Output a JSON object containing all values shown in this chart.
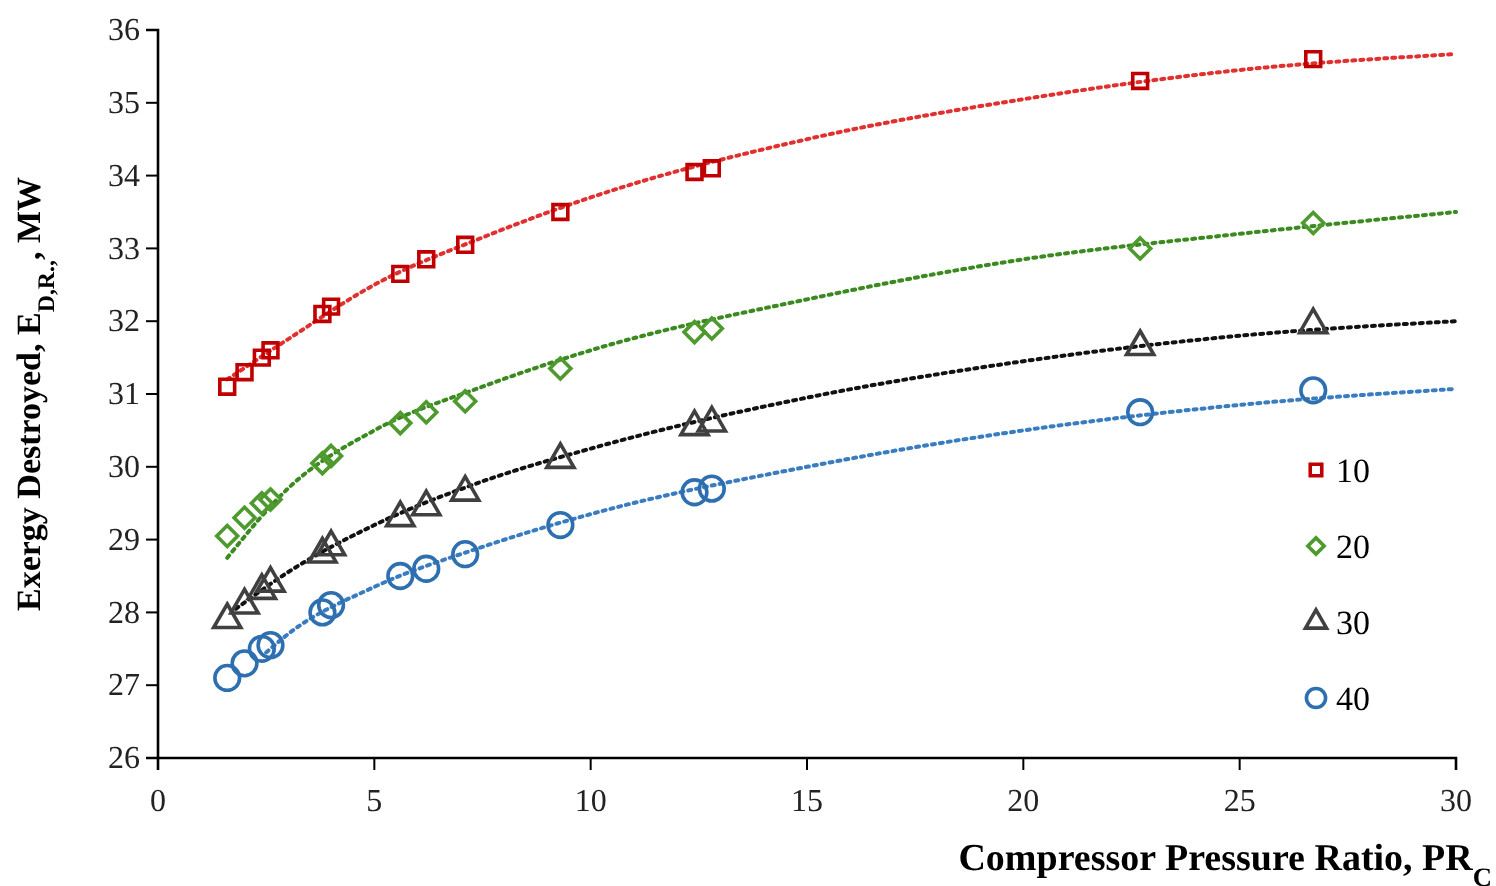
{
  "chart_data": {
    "type": "scatter",
    "xlabel": "Compressor Pressure Ratio, PR$_{C}$",
    "ylabel": "Exergy Destroyed, E$_{D,R.,}$, MW",
    "xlim": [
      0,
      30
    ],
    "xticks": [
      0,
      5,
      10,
      15,
      20,
      25,
      30
    ],
    "ylim": [
      26,
      36
    ],
    "yticks": [
      26,
      27,
      28,
      29,
      30,
      31,
      32,
      33,
      34,
      35,
      36
    ],
    "grid": false,
    "legend": "right",
    "x": [
      1.6,
      2.0,
      2.4,
      2.6,
      3.8,
      4.0,
      5.6,
      6.2,
      7.1,
      9.3,
      12.4,
      12.8,
      22.7,
      26.7
    ],
    "series": [
      {
        "name": "10",
        "color": "#c00000",
        "marker": "square",
        "values": [
          31.1,
          31.3,
          31.5,
          31.6,
          32.1,
          32.2,
          32.65,
          32.85,
          33.05,
          33.5,
          34.05,
          34.1,
          35.3,
          35.6
        ]
      },
      {
        "name": "20",
        "color": "#4e9a2e",
        "marker": "diamond",
        "values": [
          29.05,
          29.3,
          29.5,
          29.55,
          30.05,
          30.15,
          30.6,
          30.75,
          30.9,
          31.35,
          31.85,
          31.9,
          33.0,
          33.35
        ]
      },
      {
        "name": "30",
        "color": "#404040",
        "marker": "triangle",
        "values": [
          27.9,
          28.1,
          28.3,
          28.4,
          28.8,
          28.9,
          29.3,
          29.45,
          29.65,
          30.1,
          30.55,
          30.6,
          31.65,
          31.95
        ]
      },
      {
        "name": "40",
        "color": "#2e6fb0",
        "marker": "circle",
        "values": [
          27.1,
          27.3,
          27.5,
          27.55,
          28.0,
          28.1,
          28.5,
          28.6,
          28.8,
          29.2,
          29.65,
          29.7,
          30.75,
          31.05
        ]
      },
      {
        "type": "line",
        "color": "#e03030",
        "marker": "none",
        "line_style": "dotted",
        "x": [
          1.6,
          3,
          5,
          7.5,
          10,
          15,
          20,
          25,
          30
        ],
        "values": [
          31.2,
          31.75,
          32.5,
          33.15,
          33.7,
          34.5,
          35.05,
          35.45,
          35.67
        ]
      },
      {
        "type": "line",
        "color": "#3a8a20",
        "marker": "none",
        "line_style": "dotted",
        "x": [
          1.6,
          3,
          5,
          7.5,
          10,
          15,
          20,
          25,
          30
        ],
        "values": [
          28.75,
          29.7,
          30.5,
          31.1,
          31.6,
          32.3,
          32.85,
          33.2,
          33.5
        ]
      },
      {
        "type": "line",
        "color": "#111111",
        "marker": "none",
        "line_style": "dotted",
        "x": [
          1.8,
          3,
          5,
          7.5,
          10,
          15,
          20,
          25,
          30
        ],
        "values": [
          28.05,
          28.55,
          29.2,
          29.8,
          30.25,
          30.95,
          31.45,
          31.8,
          32.0
        ]
      },
      {
        "type": "line",
        "color": "#3a7cc0",
        "marker": "none",
        "line_style": "dotted",
        "x": [
          2.5,
          3,
          5,
          7.5,
          10,
          15,
          20,
          25,
          30
        ],
        "values": [
          27.45,
          27.7,
          28.35,
          28.9,
          29.35,
          30.0,
          30.5,
          30.85,
          31.07
        ]
      }
    ]
  }
}
